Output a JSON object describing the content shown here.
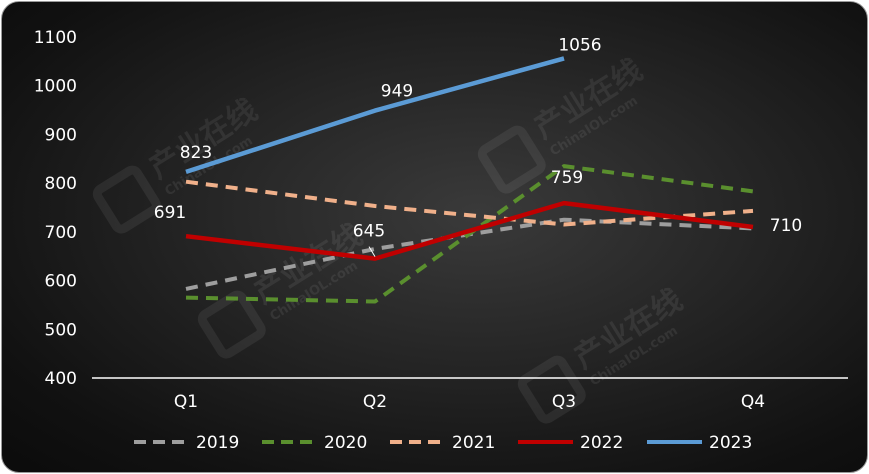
{
  "chart_data": {
    "type": "line",
    "categories": [
      "Q1",
      "Q2",
      "Q3",
      "Q4"
    ],
    "ylim": [
      400,
      1100
    ],
    "yticks": [
      "1100",
      "1000",
      "900",
      "800",
      "700",
      "600",
      "500",
      "400"
    ],
    "grid": false,
    "legend": "bottom",
    "series": [
      {
        "name": "2019",
        "values": [
          583,
          665,
          725,
          707
        ],
        "color": "#9e9e9e",
        "dashed": true
      },
      {
        "name": "2020",
        "values": [
          565,
          557,
          835,
          783
        ],
        "color": "#5a8f2e",
        "dashed": true
      },
      {
        "name": "2021",
        "values": [
          803,
          753,
          715,
          743
        ],
        "color": "#f0b08a",
        "dashed": true
      },
      {
        "name": "2022",
        "values": [
          691,
          645,
          759,
          710
        ],
        "color": "#c00000",
        "dashed": false,
        "labels": [
          "691",
          "645",
          "759",
          "710"
        ]
      },
      {
        "name": "2023",
        "values": [
          823,
          949,
          1056,
          null
        ],
        "color": "#5b9bd5",
        "dashed": false,
        "labels": [
          "823",
          "949",
          "1056",
          null
        ]
      }
    ]
  },
  "watermark": {
    "brand": "产业在线",
    "site": "ChinaIOL.com"
  }
}
